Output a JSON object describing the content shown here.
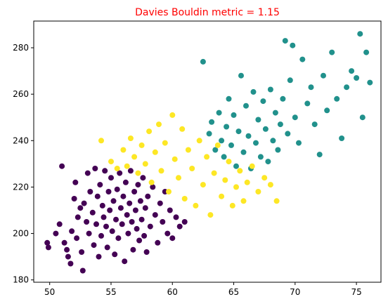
{
  "chart_data": {
    "type": "scatter",
    "title": "Davies Bouldin metric = 1.15",
    "title_color": "#ff0000",
    "xlabel": "",
    "ylabel": "",
    "xlim": [
      48.7,
      77.0
    ],
    "ylim": [
      179.0,
      291.5
    ],
    "x_ticks": [
      50,
      55,
      60,
      65,
      70,
      75
    ],
    "y_ticks": [
      180,
      200,
      220,
      240,
      260,
      280
    ],
    "grid": false,
    "legend": "none",
    "clusters": [
      {
        "color": "#440154",
        "points": [
          [
            49.8,
            196
          ],
          [
            49.9,
            194
          ],
          [
            50.5,
            200
          ],
          [
            50.8,
            204
          ],
          [
            51.0,
            229
          ],
          [
            51.2,
            196
          ],
          [
            51.4,
            193
          ],
          [
            51.5,
            190
          ],
          [
            51.7,
            187
          ],
          [
            51.8,
            201
          ],
          [
            52.0,
            215
          ],
          [
            52.1,
            222
          ],
          [
            52.2,
            198
          ],
          [
            52.3,
            207
          ],
          [
            52.5,
            211
          ],
          [
            52.6,
            192
          ],
          [
            52.7,
            184
          ],
          [
            52.8,
            213
          ],
          [
            53.0,
            205
          ],
          [
            53.1,
            226
          ],
          [
            53.2,
            200
          ],
          [
            53.3,
            218
          ],
          [
            53.5,
            209
          ],
          [
            53.6,
            195
          ],
          [
            53.7,
            228
          ],
          [
            53.8,
            204
          ],
          [
            53.9,
            216
          ],
          [
            54.0,
            190
          ],
          [
            54.1,
            221
          ],
          [
            54.2,
            199
          ],
          [
            54.3,
            212
          ],
          [
            54.4,
            207
          ],
          [
            54.5,
            227
          ],
          [
            54.6,
            203
          ],
          [
            54.7,
            194
          ],
          [
            54.8,
            218
          ],
          [
            54.9,
            210
          ],
          [
            55.0,
            224
          ],
          [
            55.1,
            201
          ],
          [
            55.2,
            214
          ],
          [
            55.3,
            191
          ],
          [
            55.4,
            206
          ],
          [
            55.5,
            219
          ],
          [
            55.6,
            198
          ],
          [
            55.7,
            226
          ],
          [
            55.8,
            211
          ],
          [
            55.9,
            204
          ],
          [
            56.0,
            216
          ],
          [
            56.1,
            188
          ],
          [
            56.2,
            222
          ],
          [
            56.3,
            208
          ],
          [
            56.4,
            200
          ],
          [
            56.5,
            213
          ],
          [
            56.6,
            227
          ],
          [
            56.7,
            205
          ],
          [
            56.8,
            193
          ],
          [
            56.9,
            218
          ],
          [
            57.0,
            210
          ],
          [
            57.1,
            202
          ],
          [
            57.2,
            221
          ],
          [
            57.3,
            197
          ],
          [
            57.4,
            214
          ],
          [
            57.5,
            206
          ],
          [
            57.6,
            224
          ],
          [
            57.7,
            199
          ],
          [
            57.8,
            211
          ],
          [
            57.9,
            192
          ],
          [
            58.0,
            216
          ],
          [
            58.2,
            203
          ],
          [
            58.4,
            220
          ],
          [
            58.6,
            208
          ],
          [
            58.8,
            196
          ],
          [
            59.0,
            213
          ],
          [
            59.2,
            205
          ],
          [
            59.4,
            218
          ],
          [
            59.6,
            200
          ],
          [
            59.8,
            210
          ],
          [
            60.0,
            198
          ],
          [
            60.3,
            207
          ],
          [
            60.6,
            203
          ],
          [
            61.0,
            205
          ]
        ]
      },
      {
        "color": "#21918c",
        "points": [
          [
            62.5,
            274
          ],
          [
            63.0,
            243
          ],
          [
            63.2,
            248
          ],
          [
            63.5,
            236
          ],
          [
            63.8,
            252
          ],
          [
            64.0,
            240
          ],
          [
            64.2,
            233
          ],
          [
            64.4,
            246
          ],
          [
            64.6,
            258
          ],
          [
            64.8,
            238
          ],
          [
            65.0,
            251
          ],
          [
            65.2,
            229
          ],
          [
            65.4,
            244
          ],
          [
            65.6,
            268
          ],
          [
            65.8,
            235
          ],
          [
            66.0,
            255
          ],
          [
            66.2,
            242
          ],
          [
            66.4,
            228
          ],
          [
            66.6,
            261
          ],
          [
            66.8,
            239
          ],
          [
            67.0,
            249
          ],
          [
            67.2,
            233
          ],
          [
            67.4,
            257
          ],
          [
            67.6,
            245
          ],
          [
            67.8,
            231
          ],
          [
            68.0,
            262
          ],
          [
            68.2,
            240
          ],
          [
            68.4,
            252
          ],
          [
            68.6,
            236
          ],
          [
            68.8,
            247
          ],
          [
            69.0,
            258
          ],
          [
            69.2,
            283
          ],
          [
            69.4,
            243
          ],
          [
            69.6,
            266
          ],
          [
            69.8,
            281
          ],
          [
            70.0,
            250
          ],
          [
            70.3,
            239
          ],
          [
            70.6,
            275
          ],
          [
            71.0,
            256
          ],
          [
            71.3,
            263
          ],
          [
            71.6,
            247
          ],
          [
            72.0,
            234
          ],
          [
            72.3,
            268
          ],
          [
            72.6,
            253
          ],
          [
            73.0,
            278
          ],
          [
            73.4,
            258
          ],
          [
            73.8,
            241
          ],
          [
            74.2,
            263
          ],
          [
            74.6,
            270
          ],
          [
            75.0,
            267
          ],
          [
            75.3,
            286
          ],
          [
            75.5,
            250
          ],
          [
            75.8,
            278
          ],
          [
            76.1,
            265
          ]
        ]
      },
      {
        "color": "#fde725",
        "points": [
          [
            54.2,
            240
          ],
          [
            55.0,
            231
          ],
          [
            55.5,
            228
          ],
          [
            56.0,
            236
          ],
          [
            56.3,
            229
          ],
          [
            56.6,
            241
          ],
          [
            56.9,
            233
          ],
          [
            57.2,
            226
          ],
          [
            57.5,
            238
          ],
          [
            57.8,
            230
          ],
          [
            58.1,
            244
          ],
          [
            58.3,
            222
          ],
          [
            58.6,
            235
          ],
          [
            58.9,
            247
          ],
          [
            59.1,
            227
          ],
          [
            59.4,
            239
          ],
          [
            59.7,
            218
          ],
          [
            60.0,
            251
          ],
          [
            60.2,
            232
          ],
          [
            60.5,
            224
          ],
          [
            60.8,
            245
          ],
          [
            61.0,
            215
          ],
          [
            61.3,
            236
          ],
          [
            61.6,
            228
          ],
          [
            61.9,
            212
          ],
          [
            62.2,
            240
          ],
          [
            62.5,
            221
          ],
          [
            62.8,
            233
          ],
          [
            63.1,
            208
          ],
          [
            63.4,
            226
          ],
          [
            63.7,
            238
          ],
          [
            64.0,
            216
          ],
          [
            64.3,
            223
          ],
          [
            64.6,
            231
          ],
          [
            64.9,
            212
          ],
          [
            65.2,
            220
          ],
          [
            65.5,
            227
          ],
          [
            65.8,
            214
          ],
          [
            66.1,
            222
          ],
          [
            66.5,
            229
          ],
          [
            67.0,
            218
          ],
          [
            67.5,
            224
          ],
          [
            68.0,
            221
          ],
          [
            68.5,
            214
          ]
        ]
      }
    ]
  }
}
